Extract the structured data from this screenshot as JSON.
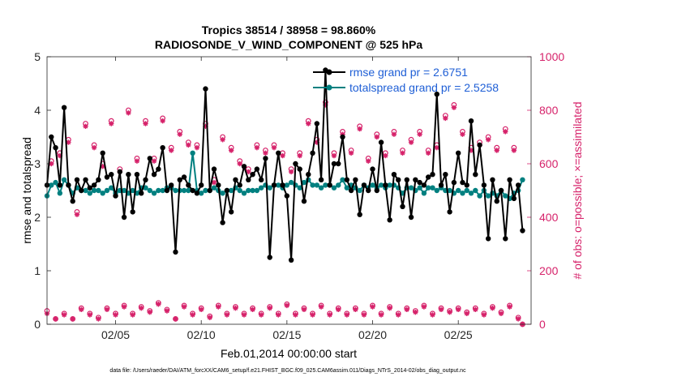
{
  "colors": {
    "rmse": "#000000",
    "spread": "#008080",
    "obs": "#d6226a",
    "legend_text": "#1f5fd6"
  },
  "chart_data": {
    "type": "line",
    "title_line1": "Tropics 38514 / 38958 = 98.860%",
    "title_line2": "RADIOSONDE_V_WIND_COMPONENT @ 525 hPa",
    "xlabel": "Feb.01,2014 00:00:00 start",
    "ylabel_left": "rmse and totalspread",
    "ylabel_right": "# of obs: o=possible; ×=assimilated",
    "footer": "data file: /Users/raeder/DAI/ATM_forcXX/CAM6_setup/f.e21.FHIST_BGC.f09_025.CAM6assim.011/Diags_NTrS_2014-02/obs_diag_output.nc",
    "xlim": [
      1.0,
      29.25
    ],
    "ylim_left": [
      0,
      5
    ],
    "ylim_right": [
      0,
      1000
    ],
    "x_ticks": [
      5,
      10,
      15,
      20,
      25
    ],
    "x_tick_labels": [
      "02/05",
      "02/10",
      "02/15",
      "02/20",
      "02/25"
    ],
    "y_ticks_left": [
      0,
      1,
      2,
      3,
      4,
      5
    ],
    "y_ticks_right": [
      0,
      200,
      400,
      600,
      800,
      1000
    ],
    "x_step_days": 0.25,
    "x_start": 1.0,
    "legend": [
      {
        "name": "rmse grand pr = 2.6751",
        "series": "rmse"
      },
      {
        "name": "totalspread grand pr = 2.5258",
        "series": "totalspread"
      }
    ],
    "series": [
      {
        "name": "rmse",
        "axis": "left",
        "values": [
          2.6,
          3.5,
          3.3,
          2.6,
          4.05,
          2.6,
          2.3,
          2.7,
          2.5,
          2.7,
          2.55,
          2.6,
          2.7,
          3.2,
          2.75,
          2.8,
          2.4,
          2.85,
          2.0,
          2.8,
          2.1,
          2.8,
          2.45,
          2.7,
          3.1,
          2.8,
          2.9,
          3.3,
          2.5,
          2.6,
          1.35,
          2.7,
          2.75,
          2.6,
          2.5,
          2.45,
          2.6,
          4.4,
          2.5,
          2.9,
          2.6,
          1.9,
          2.5,
          2.1,
          2.7,
          2.6,
          2.95,
          2.7,
          2.8,
          2.9,
          2.7,
          3.1,
          1.25,
          2.6,
          3.2,
          2.6,
          2.4,
          1.2,
          3.0,
          2.9,
          2.3,
          2.8,
          3.2,
          3.75,
          2.7,
          4.75,
          2.6,
          3.0,
          3.0,
          3.5,
          2.7,
          2.5,
          2.7,
          2.05,
          2.6,
          2.5,
          2.9,
          2.5,
          3.4,
          2.6,
          1.95,
          2.8,
          2.7,
          2.2,
          2.7,
          2.0,
          2.7,
          2.65,
          2.6,
          2.75,
          2.8,
          4.3,
          2.6,
          2.8,
          2.1,
          2.65,
          3.2,
          2.65,
          2.6,
          3.8,
          2.8,
          3.35,
          2.6,
          1.6,
          2.7,
          2.3,
          2.5,
          1.6,
          2.7,
          2.35,
          2.6,
          1.75
        ]
      },
      {
        "name": "totalspread",
        "axis": "left",
        "values": [
          2.4,
          2.6,
          2.65,
          2.45,
          2.7,
          2.6,
          2.45,
          2.55,
          2.5,
          2.5,
          2.45,
          2.5,
          2.5,
          2.45,
          2.5,
          2.55,
          2.45,
          2.5,
          2.5,
          2.45,
          2.5,
          2.45,
          2.55,
          2.55,
          2.5,
          2.45,
          2.5,
          2.5,
          2.55,
          2.55,
          2.5,
          2.5,
          2.5,
          2.5,
          3.2,
          2.5,
          2.45,
          2.5,
          2.5,
          2.55,
          2.5,
          2.45,
          2.5,
          2.5,
          2.55,
          2.5,
          2.45,
          2.5,
          2.5,
          2.5,
          2.55,
          2.6,
          2.55,
          2.6,
          2.6,
          2.55,
          2.6,
          2.65,
          2.6,
          2.55,
          2.65,
          2.7,
          2.6,
          2.6,
          2.55,
          2.6,
          2.6,
          2.55,
          2.6,
          2.7,
          2.55,
          2.6,
          2.55,
          2.5,
          2.6,
          2.55,
          2.6,
          2.55,
          2.6,
          2.55,
          2.6,
          2.6,
          2.55,
          2.45,
          2.55,
          2.55,
          2.5,
          2.55,
          2.45,
          2.55,
          2.55,
          2.5,
          2.55,
          2.5,
          2.5,
          2.45,
          2.5,
          2.45,
          2.5,
          2.45,
          2.5,
          2.4,
          2.5,
          2.4,
          2.45,
          2.4,
          2.5,
          2.4,
          2.35,
          2.45,
          2.5,
          2.7
        ]
      },
      {
        "name": "obs possible",
        "axis": "right",
        "values": [
          50,
          610,
          20,
          640,
          40,
          690,
          20,
          420,
          60,
          750,
          40,
          670,
          25,
          600,
          60,
          760,
          40,
          580,
          70,
          800,
          40,
          620,
          65,
          760,
          50,
          620,
          80,
          770,
          55,
          660,
          20,
          720,
          70,
          680,
          40,
          670,
          60,
          750,
          30,
          540,
          70,
          700,
          40,
          660,
          65,
          610,
          40,
          580,
          60,
          670,
          40,
          650,
          65,
          670,
          40,
          640,
          75,
          580,
          40,
          640,
          60,
          760,
          40,
          690,
          70,
          830,
          40,
          640,
          60,
          720,
          40,
          650,
          60,
          740,
          40,
          620,
          70,
          710,
          40,
          640,
          65,
          720,
          40,
          650,
          60,
          690,
          50,
          720,
          70,
          650,
          40,
          670,
          60,
          780,
          50,
          820,
          60,
          720,
          45,
          660,
          60,
          680,
          40,
          700,
          65,
          660,
          45,
          730,
          70,
          660,
          25,
          0
        ]
      },
      {
        "name": "obs assimilated",
        "axis": "right",
        "values": [
          40,
          600,
          20,
          630,
          35,
          680,
          20,
          410,
          55,
          740,
          35,
          660,
          20,
          590,
          55,
          750,
          35,
          570,
          65,
          790,
          35,
          610,
          60,
          750,
          45,
          610,
          75,
          760,
          50,
          650,
          20,
          710,
          65,
          670,
          35,
          660,
          55,
          740,
          25,
          530,
          65,
          690,
          35,
          650,
          60,
          600,
          35,
          570,
          55,
          660,
          35,
          640,
          60,
          660,
          35,
          630,
          70,
          570,
          35,
          630,
          55,
          750,
          35,
          680,
          65,
          820,
          35,
          630,
          55,
          710,
          35,
          640,
          55,
          730,
          35,
          610,
          65,
          700,
          35,
          630,
          60,
          710,
          35,
          640,
          55,
          680,
          45,
          710,
          65,
          640,
          35,
          660,
          55,
          770,
          45,
          810,
          55,
          710,
          40,
          650,
          55,
          670,
          35,
          690,
          60,
          650,
          40,
          720,
          65,
          650,
          20,
          0
        ]
      }
    ]
  }
}
